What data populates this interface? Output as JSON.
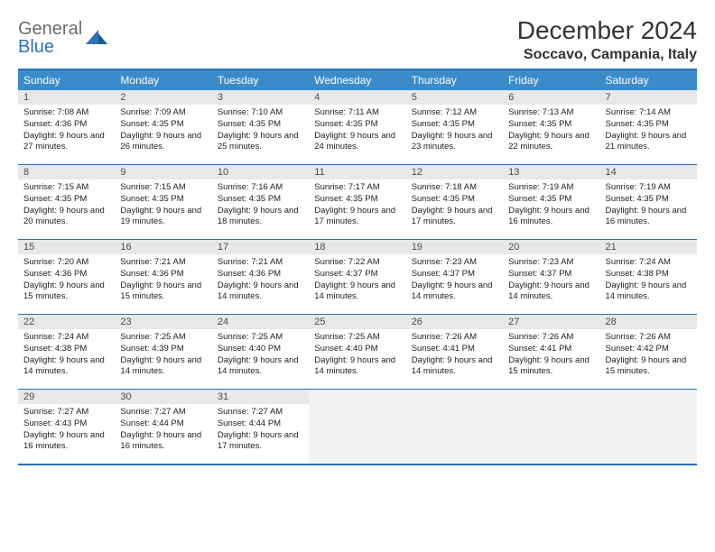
{
  "logo": {
    "top": "General",
    "bottom": "Blue"
  },
  "title": "December 2024",
  "location": "Soccavo, Campania, Italy",
  "colors": {
    "accent": "#2b71b8",
    "header_bg": "#3b8bc9",
    "day_num_bg": "#e8e8e8",
    "empty_bg": "#f2f2f2",
    "logo_gray": "#6b6b6b"
  },
  "day_headers": [
    "Sunday",
    "Monday",
    "Tuesday",
    "Wednesday",
    "Thursday",
    "Friday",
    "Saturday"
  ],
  "weeks": [
    [
      {
        "n": "1",
        "sunrise": "7:08 AM",
        "sunset": "4:36 PM",
        "dl": "9 hours and 27 minutes."
      },
      {
        "n": "2",
        "sunrise": "7:09 AM",
        "sunset": "4:35 PM",
        "dl": "9 hours and 26 minutes."
      },
      {
        "n": "3",
        "sunrise": "7:10 AM",
        "sunset": "4:35 PM",
        "dl": "9 hours and 25 minutes."
      },
      {
        "n": "4",
        "sunrise": "7:11 AM",
        "sunset": "4:35 PM",
        "dl": "9 hours and 24 minutes."
      },
      {
        "n": "5",
        "sunrise": "7:12 AM",
        "sunset": "4:35 PM",
        "dl": "9 hours and 23 minutes."
      },
      {
        "n": "6",
        "sunrise": "7:13 AM",
        "sunset": "4:35 PM",
        "dl": "9 hours and 22 minutes."
      },
      {
        "n": "7",
        "sunrise": "7:14 AM",
        "sunset": "4:35 PM",
        "dl": "9 hours and 21 minutes."
      }
    ],
    [
      {
        "n": "8",
        "sunrise": "7:15 AM",
        "sunset": "4:35 PM",
        "dl": "9 hours and 20 minutes."
      },
      {
        "n": "9",
        "sunrise": "7:15 AM",
        "sunset": "4:35 PM",
        "dl": "9 hours and 19 minutes."
      },
      {
        "n": "10",
        "sunrise": "7:16 AM",
        "sunset": "4:35 PM",
        "dl": "9 hours and 18 minutes."
      },
      {
        "n": "11",
        "sunrise": "7:17 AM",
        "sunset": "4:35 PM",
        "dl": "9 hours and 17 minutes."
      },
      {
        "n": "12",
        "sunrise": "7:18 AM",
        "sunset": "4:35 PM",
        "dl": "9 hours and 17 minutes."
      },
      {
        "n": "13",
        "sunrise": "7:19 AM",
        "sunset": "4:35 PM",
        "dl": "9 hours and 16 minutes."
      },
      {
        "n": "14",
        "sunrise": "7:19 AM",
        "sunset": "4:35 PM",
        "dl": "9 hours and 16 minutes."
      }
    ],
    [
      {
        "n": "15",
        "sunrise": "7:20 AM",
        "sunset": "4:36 PM",
        "dl": "9 hours and 15 minutes."
      },
      {
        "n": "16",
        "sunrise": "7:21 AM",
        "sunset": "4:36 PM",
        "dl": "9 hours and 15 minutes."
      },
      {
        "n": "17",
        "sunrise": "7:21 AM",
        "sunset": "4:36 PM",
        "dl": "9 hours and 14 minutes."
      },
      {
        "n": "18",
        "sunrise": "7:22 AM",
        "sunset": "4:37 PM",
        "dl": "9 hours and 14 minutes."
      },
      {
        "n": "19",
        "sunrise": "7:23 AM",
        "sunset": "4:37 PM",
        "dl": "9 hours and 14 minutes."
      },
      {
        "n": "20",
        "sunrise": "7:23 AM",
        "sunset": "4:37 PM",
        "dl": "9 hours and 14 minutes."
      },
      {
        "n": "21",
        "sunrise": "7:24 AM",
        "sunset": "4:38 PM",
        "dl": "9 hours and 14 minutes."
      }
    ],
    [
      {
        "n": "22",
        "sunrise": "7:24 AM",
        "sunset": "4:38 PM",
        "dl": "9 hours and 14 minutes."
      },
      {
        "n": "23",
        "sunrise": "7:25 AM",
        "sunset": "4:39 PM",
        "dl": "9 hours and 14 minutes."
      },
      {
        "n": "24",
        "sunrise": "7:25 AM",
        "sunset": "4:40 PM",
        "dl": "9 hours and 14 minutes."
      },
      {
        "n": "25",
        "sunrise": "7:25 AM",
        "sunset": "4:40 PM",
        "dl": "9 hours and 14 minutes."
      },
      {
        "n": "26",
        "sunrise": "7:26 AM",
        "sunset": "4:41 PM",
        "dl": "9 hours and 14 minutes."
      },
      {
        "n": "27",
        "sunrise": "7:26 AM",
        "sunset": "4:41 PM",
        "dl": "9 hours and 15 minutes."
      },
      {
        "n": "28",
        "sunrise": "7:26 AM",
        "sunset": "4:42 PM",
        "dl": "9 hours and 15 minutes."
      }
    ],
    [
      {
        "n": "29",
        "sunrise": "7:27 AM",
        "sunset": "4:43 PM",
        "dl": "9 hours and 16 minutes."
      },
      {
        "n": "30",
        "sunrise": "7:27 AM",
        "sunset": "4:44 PM",
        "dl": "9 hours and 16 minutes."
      },
      {
        "n": "31",
        "sunrise": "7:27 AM",
        "sunset": "4:44 PM",
        "dl": "9 hours and 17 minutes."
      },
      null,
      null,
      null,
      null
    ]
  ],
  "labels": {
    "sunrise": "Sunrise:",
    "sunset": "Sunset:",
    "daylight": "Daylight:"
  }
}
